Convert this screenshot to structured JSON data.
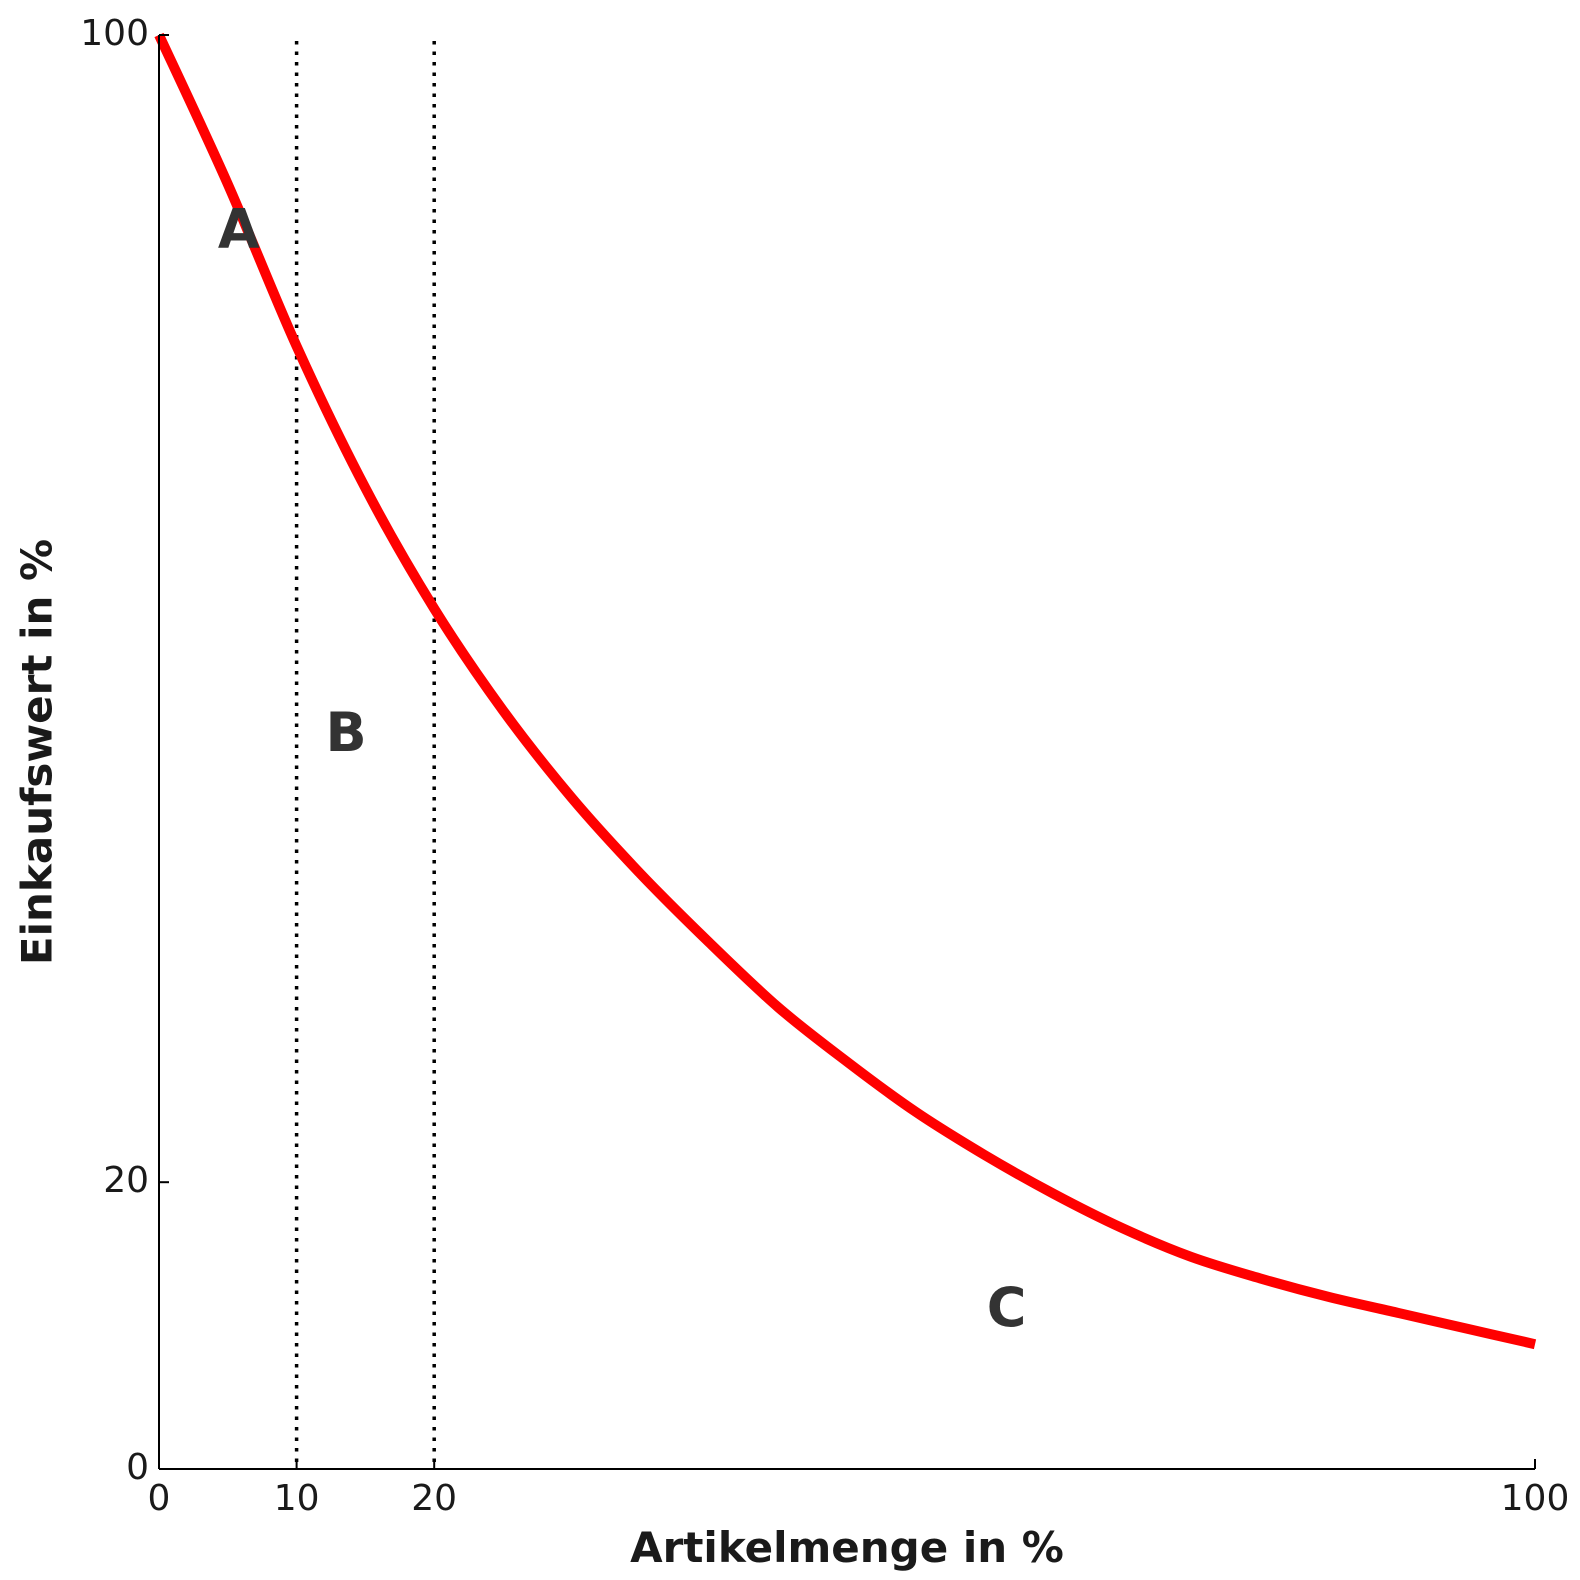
{
  "chart_data": {
    "type": "line",
    "title": "",
    "xlabel": "Artikelmenge in %",
    "ylabel": "Einkaufswert in %",
    "xlim": [
      0,
      100
    ],
    "ylim": [
      0,
      100
    ],
    "x_ticks": [
      {
        "value": 0,
        "label": "0"
      },
      {
        "value": 10,
        "label": "10"
      },
      {
        "value": 20,
        "label": "20"
      },
      {
        "value": 100,
        "label": "100"
      }
    ],
    "y_ticks": [
      {
        "value": 0,
        "label": "0"
      },
      {
        "value": 20,
        "label": "20"
      },
      {
        "value": 100,
        "label": "100"
      }
    ],
    "grid": false,
    "legend": "none",
    "series": [
      {
        "color": "#ff0000",
        "x": [
          0,
          5,
          10,
          15,
          20,
          25,
          30,
          35,
          40,
          45,
          50,
          55,
          60,
          65,
          70,
          75,
          80,
          85,
          90,
          95,
          100
        ],
        "y": [
          100,
          89.6,
          78.3,
          68.4,
          60.0,
          52.9,
          46.8,
          41.5,
          36.7,
          32.2,
          28.4,
          24.9,
          21.9,
          19.2,
          16.8,
          14.8,
          13.3,
          12.0,
          10.9,
          9.8,
          8.7
        ]
      }
    ],
    "vertical_lines": [
      {
        "x": 10,
        "style": "dotted",
        "color": "#000000"
      },
      {
        "x": 20,
        "style": "dotted",
        "color": "#000000"
      }
    ],
    "annotations": [
      {
        "text": "A",
        "x": 5.8,
        "y": 86.2
      },
      {
        "text": "B",
        "x": 13.6,
        "y": 51.1
      },
      {
        "text": "C",
        "x": 61.6,
        "y": 11.0
      }
    ]
  }
}
